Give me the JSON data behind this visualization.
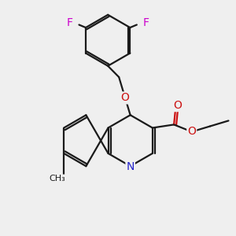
{
  "bg_color": "#efefef",
  "bond_color": "#1a1a1a",
  "N_color": "#2222cc",
  "O_color": "#cc1111",
  "F_color": "#cc00cc",
  "line_width": 1.6,
  "fig_size": [
    3.0,
    3.0
  ],
  "dpi": 100,
  "xlim": [
    -1,
    11
  ],
  "ylim": [
    -1,
    11
  ]
}
